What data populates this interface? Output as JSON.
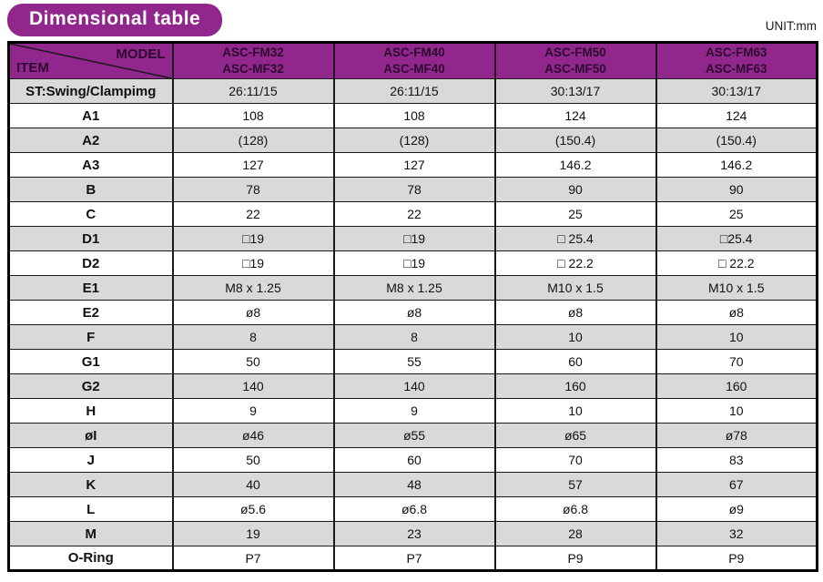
{
  "page": {
    "title": "Dimensional table",
    "unit_label": "UNIT:mm"
  },
  "colors": {
    "purple": "#91278D",
    "header_text": "#2E082E",
    "title_text": "#FFFFFF",
    "row_shaded": "#D9D9D9",
    "row_plain": "#FFFFFF",
    "border": "#000000",
    "page_bg": "#FFFFFF"
  },
  "table": {
    "corner": {
      "top_label": "MODEL",
      "bottom_label": "ITEM"
    },
    "columns": [
      {
        "line1": "ASC-FM32",
        "line2": "ASC-MF32"
      },
      {
        "line1": "ASC-FM40",
        "line2": "ASC-MF40"
      },
      {
        "line1": "ASC-FM50",
        "line2": "ASC-MF50"
      },
      {
        "line1": "ASC-FM63",
        "line2": "ASC-MF63"
      }
    ],
    "rows": [
      {
        "item": "ST:Swing/Clampimg",
        "values": [
          "26:11/15",
          "26:11/15",
          "30:13/17",
          "30:13/17"
        ]
      },
      {
        "item": "A1",
        "values": [
          "108",
          "108",
          "124",
          "124"
        ]
      },
      {
        "item": "A2",
        "values": [
          "(128)",
          "(128)",
          "(150.4)",
          "(150.4)"
        ]
      },
      {
        "item": "A3",
        "values": [
          "127",
          "127",
          "146.2",
          "146.2"
        ]
      },
      {
        "item": "B",
        "values": [
          "78",
          "78",
          "90",
          "90"
        ]
      },
      {
        "item": "C",
        "values": [
          "22",
          "22",
          "25",
          "25"
        ]
      },
      {
        "item": "D1",
        "values": [
          "□19",
          "□19",
          "□ 25.4",
          "□25.4"
        ]
      },
      {
        "item": "D2",
        "values": [
          "□19",
          "□19",
          "□ 22.2",
          "□ 22.2"
        ]
      },
      {
        "item": "E1",
        "values": [
          "M8 x 1.25",
          "M8 x 1.25",
          "M10 x 1.5",
          "M10 x 1.5"
        ]
      },
      {
        "item": "E2",
        "values": [
          "ø8",
          "ø8",
          "ø8",
          "ø8"
        ]
      },
      {
        "item": "F",
        "values": [
          "8",
          "8",
          "10",
          "10"
        ]
      },
      {
        "item": "G1",
        "values": [
          "50",
          "55",
          "60",
          "70"
        ]
      },
      {
        "item": "G2",
        "values": [
          "140",
          "140",
          "160",
          "160"
        ]
      },
      {
        "item": "H",
        "values": [
          "9",
          "9",
          "10",
          "10"
        ]
      },
      {
        "item": "øI",
        "values": [
          "ø46",
          "ø55",
          "ø65",
          "ø78"
        ]
      },
      {
        "item": "J",
        "values": [
          "50",
          "60",
          "70",
          "83"
        ]
      },
      {
        "item": "K",
        "values": [
          "40",
          "48",
          "57",
          "67"
        ]
      },
      {
        "item": "L",
        "values": [
          "ø5.6",
          "ø6.8",
          "ø6.8",
          "ø9"
        ]
      },
      {
        "item": "M",
        "values": [
          "19",
          "23",
          "28",
          "32"
        ]
      },
      {
        "item": "O-Ring",
        "values": [
          "P7",
          "P7",
          "P9",
          "P9"
        ]
      }
    ]
  }
}
